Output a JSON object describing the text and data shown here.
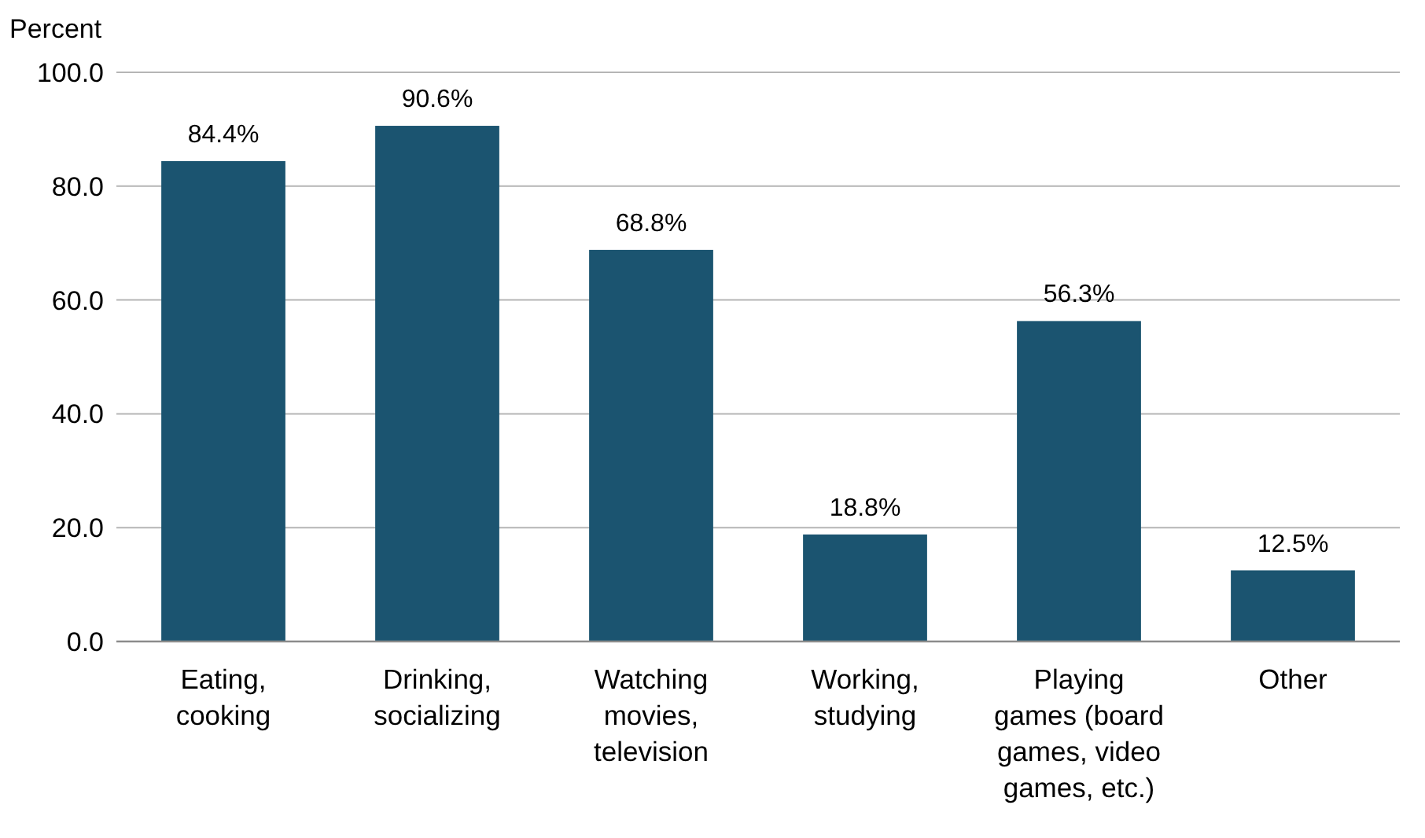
{
  "chart_data": {
    "type": "bar",
    "ylabel": "Percent",
    "categories": [
      "Eating, cooking",
      "Drinking, socializing",
      "Watching movies, television",
      "Working, studying",
      "Playing games (board games, video games, etc.)",
      "Other"
    ],
    "values": [
      84.4,
      90.6,
      68.8,
      18.8,
      56.3,
      12.5
    ],
    "value_labels": [
      "84.4%",
      "90.6%",
      "68.8%",
      "18.8%",
      "56.3%",
      "12.5%"
    ],
    "color": "#1b5470",
    "ylim": [
      0,
      100
    ],
    "yticks": [
      {
        "value": 0,
        "label": "0.0"
      },
      {
        "value": 20,
        "label": "20.0"
      },
      {
        "value": 40,
        "label": "40.0"
      },
      {
        "value": 60,
        "label": "60.0"
      },
      {
        "value": 80,
        "label": "80.0"
      },
      {
        "value": 100,
        "label": "100.0"
      }
    ],
    "grid": "y"
  }
}
